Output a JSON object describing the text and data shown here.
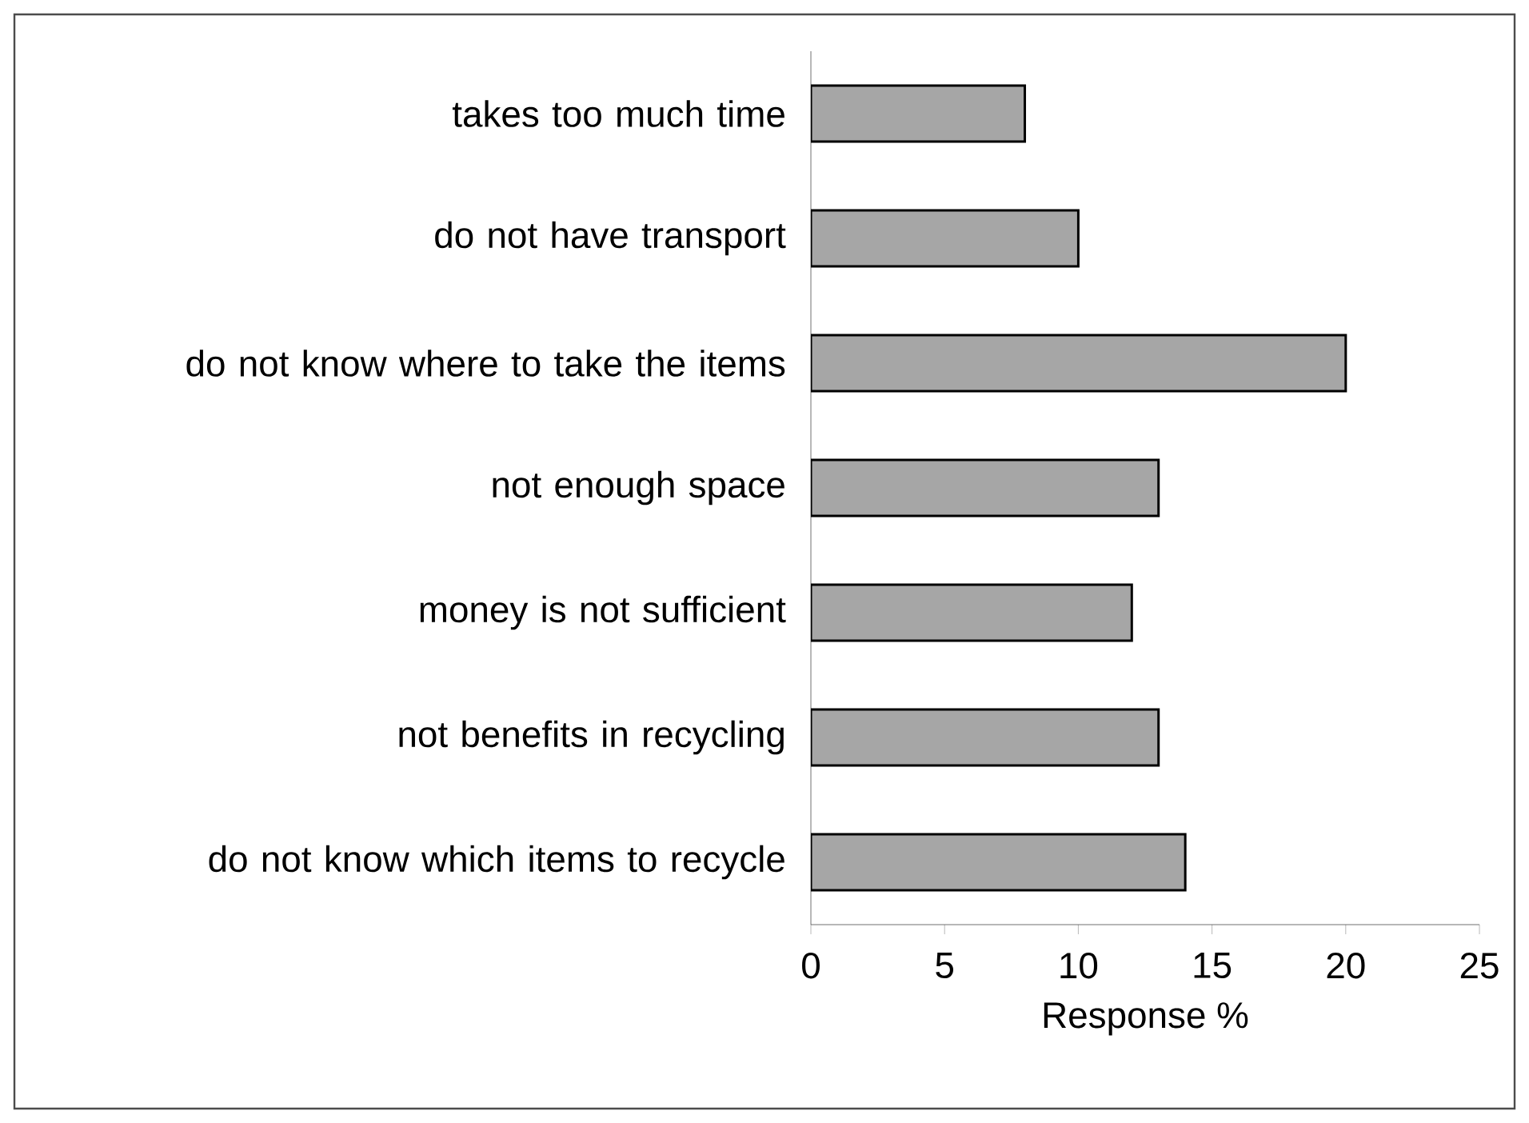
{
  "chart_data": {
    "type": "bar",
    "orientation": "horizontal",
    "xlabel": "Response %",
    "categories": [
      "takes too much time",
      "do not have transport",
      "do not know where to take the items",
      "not enough space",
      "money is not sufficient",
      "not benefits in recycling",
      "do not know which items to recycle"
    ],
    "values": [
      8,
      10,
      20,
      13,
      12,
      13,
      14
    ],
    "color": "#a6a6a6",
    "xlim": [
      0,
      25
    ],
    "xticks": [
      0,
      5,
      10,
      15,
      20,
      25
    ],
    "grid": false
  }
}
